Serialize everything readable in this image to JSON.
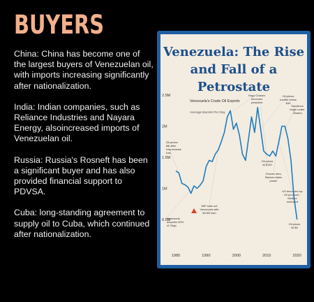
{
  "slide": {
    "heading": "BUYERS",
    "items": [
      "China: China has become one of the largest buyers of Venezuelan oil, with imports increasing significantly after nationalization.",
      "India: Indian companies, such as Reliance Industries and Nayara Energy, alsoincreased imports of Venezuelan oil.",
      "Russia: Russia's Rosneft has been a significant buyer and has also provided financial support to PDVSA.",
      "Cuba: long-standing agreement to supply oil to Cuba, which continued after nationalization."
    ]
  },
  "colors": {
    "background": "#000000",
    "heading": "#f2b08c",
    "body_text": "#f1f1f1",
    "card_border": "#1f5fa3",
    "card_bg": "#f3ece1",
    "title": "#1d4f8a",
    "line": "#1e7dbd",
    "marker": "#d9442b"
  },
  "chart_data": {
    "type": "line",
    "title": "Venezuela: The Rise and Fall of a Petrostate",
    "subtitle": "Venezuela's Crude Oil Exports",
    "subtitle_unit": "Average Barrels Per Day",
    "y_ticks": [
      "2.5M",
      "2M",
      "1.5M",
      "1M",
      "0.5M"
    ],
    "y_tick_values": [
      2.5,
      2.0,
      1.5,
      1.0,
      0.5
    ],
    "x_ticks": [
      "1980",
      "1990",
      "2000",
      "2010",
      "2020"
    ],
    "x_tick_values": [
      1980,
      1990,
      2000,
      2010,
      2020
    ],
    "xlim": [
      1980,
      2021
    ],
    "ylim": [
      0.5,
      2.5
    ],
    "grid": false,
    "series": [
      {
        "x": [
          1980,
          1981,
          1982,
          1983,
          1984,
          1985,
          1986,
          1987,
          1988,
          1989,
          1990,
          1991,
          1992,
          1993,
          1994,
          1995,
          1996,
          1997,
          1998,
          1999,
          2000,
          2001,
          2002,
          2003,
          2004,
          2005,
          2006,
          2007,
          2008,
          2009,
          2010,
          2011,
          2012,
          2013,
          2014,
          2015,
          2016,
          2017,
          2018,
          2019,
          2020
        ],
        "values": [
          1.28,
          1.25,
          1.08,
          1.06,
          1.02,
          0.92,
          1.04,
          1.0,
          1.05,
          1.12,
          1.35,
          1.45,
          1.43,
          1.55,
          1.62,
          1.75,
          1.9,
          2.15,
          2.25,
          1.95,
          2.05,
          1.85,
          1.55,
          1.45,
          1.8,
          2.15,
          1.9,
          2.3,
          1.95,
          1.6,
          1.55,
          1.52,
          1.6,
          1.52,
          1.75,
          2.0,
          2.0,
          1.8,
          1.45,
          0.85,
          0.5
        ]
      }
    ],
    "annotations": [
      "Oil prices fall after Iraq invades Iran",
      "Hugo Chavez becomes president",
      "Oil prices tumble below $40",
      "Sanctions begin under Obama",
      "Oil prices at $140",
      "Chavez dies, Maduro takes power",
      "US becomes top Oil producer - Maduro reelected",
      "IMF bails out Venezuela with $4.6B loan",
      "Venezuela acquires 50% of Citgo",
      "Oil prices hit $0"
    ]
  }
}
